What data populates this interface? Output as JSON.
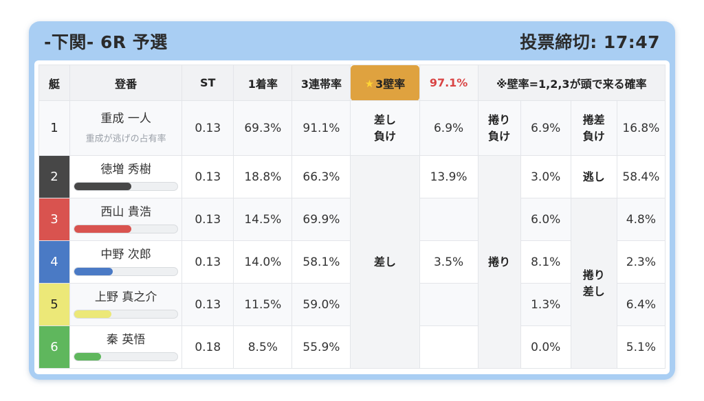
{
  "card": {
    "bg_color": "#a9cef3",
    "title": "-下関- 6R 予選",
    "deadline": "投票締切: 17:47"
  },
  "table": {
    "head": {
      "boat": "艇",
      "racer": "登番",
      "st": "ST",
      "win_rate": "1着率",
      "top3_rate": "3連帯率",
      "wall_star": "★",
      "wall_label": "3壁率",
      "wall_value": "97.1%",
      "note": "※壁率=1,2,3が頭で来る確率"
    },
    "colors": {
      "highlight_bg": "#dfa23f",
      "highlight_border": "#2f2f2f",
      "star_yellow": "#ffd534",
      "wall_value_red": "#d94444"
    },
    "labels": {
      "sashi_lose": [
        "差し",
        "負け"
      ],
      "makuri_lose": [
        "捲り",
        "負け"
      ],
      "makurisashi_lose": [
        "捲差",
        "負け"
      ],
      "nigashi": "逃し",
      "sashi": "差し",
      "makuri": "捲り",
      "makuri_sashi": [
        "捲り",
        "差し"
      ]
    },
    "rows": [
      {
        "boat": "1",
        "boat_color": "#f8f9fb",
        "name": "重成 一人",
        "subtext": "重成が逃げの占有率",
        "st": "0.13",
        "win_rate": "69.3%",
        "top3_rate": "91.1%",
        "sashi": "6.9%",
        "makuri": "6.9%",
        "makurisashi": "16.8%"
      },
      {
        "boat": "2",
        "boat_color": "#474747",
        "bar_percent": 55,
        "name": "徳増 秀樹",
        "st": "0.13",
        "win_rate": "18.8%",
        "top3_rate": "66.3%",
        "sashi": "13.9%",
        "makuri": "3.0%",
        "makurisashi": "58.4%"
      },
      {
        "boat": "3",
        "boat_color": "#d9534f",
        "bar_percent": 55,
        "name": "西山 貴浩",
        "st": "0.13",
        "win_rate": "14.5%",
        "top3_rate": "69.9%",
        "sashi": "",
        "makuri": "6.0%",
        "makurisashi": "4.8%"
      },
      {
        "boat": "4",
        "boat_color": "#4a7ac5",
        "bar_percent": 37,
        "name": "中野 次郎",
        "st": "0.13",
        "win_rate": "14.0%",
        "top3_rate": "58.1%",
        "sashi": "3.5%",
        "makuri": "8.1%",
        "makurisashi": "2.3%"
      },
      {
        "boat": "5",
        "boat_color": "#ece878",
        "bar_percent": 36,
        "name": "上野 真之介",
        "st": "0.13",
        "win_rate": "11.5%",
        "top3_rate": "59.0%",
        "sashi": "",
        "makuri": "1.3%",
        "makurisashi": "6.4%"
      },
      {
        "boat": "6",
        "boat_color": "#5fb75d",
        "bar_percent": 26,
        "name": "秦 英悟",
        "st": "0.18",
        "win_rate": "8.5%",
        "top3_rate": "55.9%",
        "sashi": "",
        "makuri": "0.0%",
        "makurisashi": "5.1%"
      }
    ]
  }
}
